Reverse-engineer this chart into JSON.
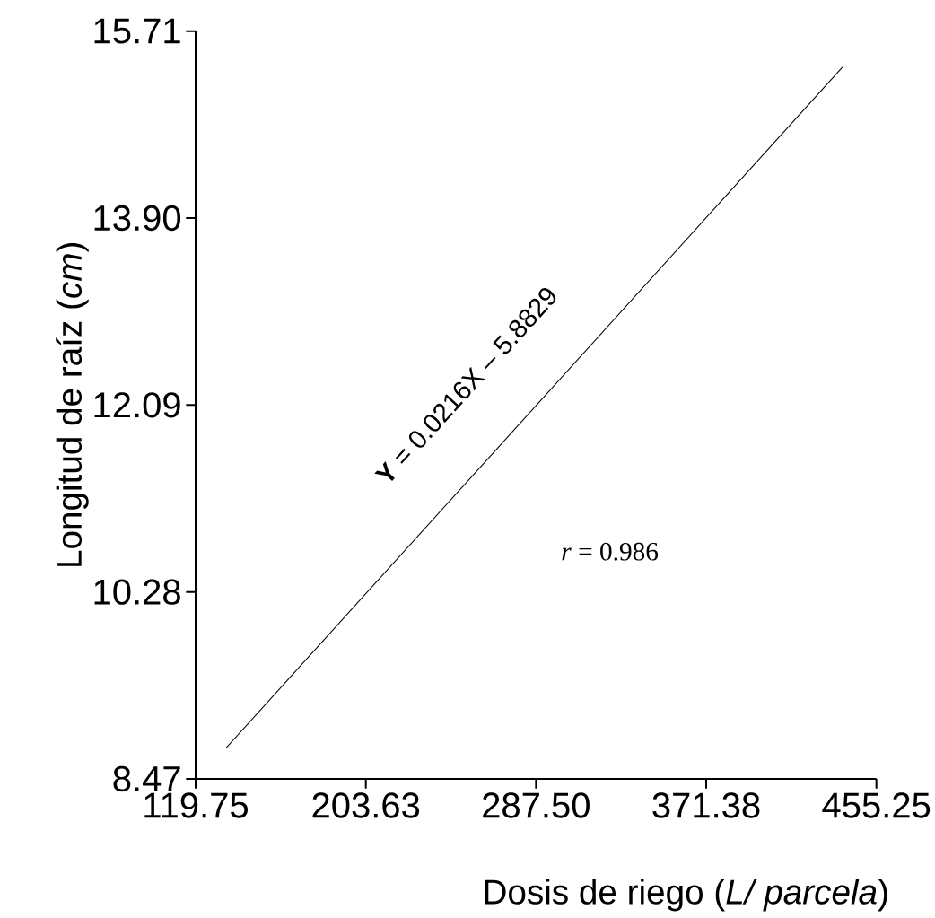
{
  "chart_data": {
    "type": "line",
    "x": [
      134.8,
      438.5
    ],
    "values": [
      8.77,
      15.36
    ],
    "color": "#000000",
    "xlabel": "Dosis de riego  (*L/ parcela*)",
    "ylabel": "Longitud de raíz (*cm*)",
    "annotations": [
      "**Y** = 0.0216X – 5.8829",
      "*r* = 0.986"
    ],
    "xlim": [
      119.75,
      455.25
    ],
    "xticks": [
      119.75,
      203.63,
      {
        "value": 287.5,
        "label": "287.50"
      },
      371.38,
      455.25
    ],
    "ylim": [
      8.47,
      15.71
    ],
    "yticks": [
      8.47,
      10.28,
      12.09,
      {
        "value": 13.9,
        "label": "13.90"
      },
      15.71
    ],
    "grid": false,
    "marker": "none",
    "line_style": "solid"
  }
}
